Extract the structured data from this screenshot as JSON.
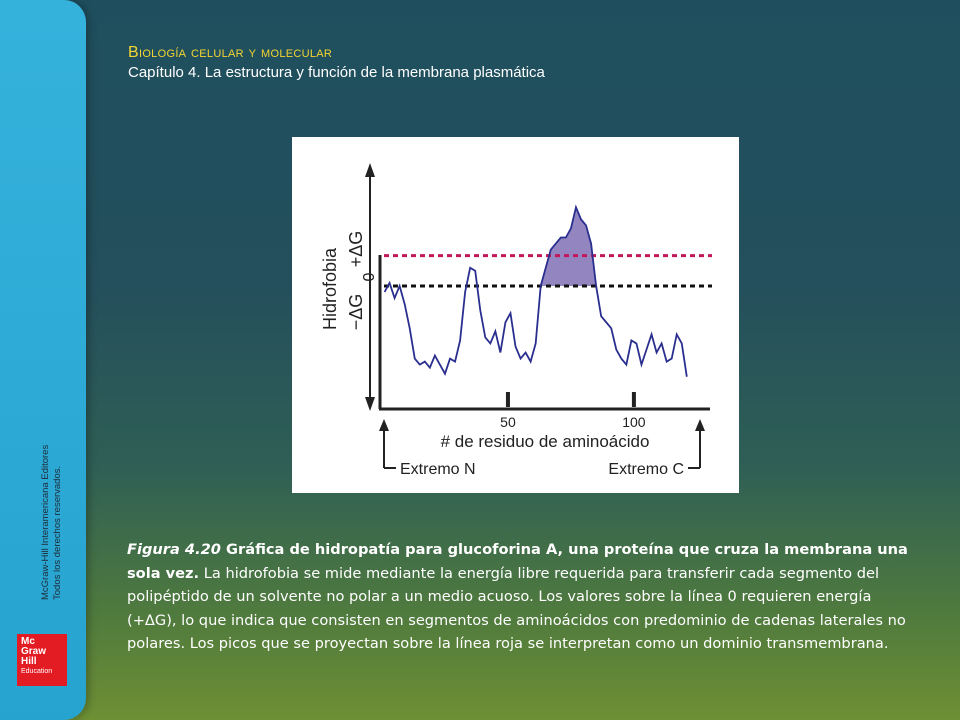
{
  "header": {
    "title": "Biología celular y molecular",
    "subtitle": "Capítulo 4. La estructura y función de la membrana plasmática"
  },
  "sidebar": {
    "copyright_line1": "McGraw-Hill Interamericana Editores",
    "copyright_line2": "Todos los derechos reservados.",
    "logo_lines": [
      "Mc",
      "Graw",
      "Hill",
      "Education"
    ]
  },
  "caption": {
    "figure_label": "Figura 4.20",
    "lead": "Gráfica de hidropatía para glucoforina A, una proteína que cruza la membrana una sola vez.",
    "body": "La hidrofobia se mide mediante la energía libre requerida para transferir cada segmento del polipéptido de un solvente no polar a un medio acuoso. Los valores sobre la línea 0 requieren energía (+ΔG), lo que indica que consisten en segmentos de aminoácidos con predominio de cadenas laterales no polares. Los picos que se proyectan sobre la línea roja se interpretan como un dominio transmembrana."
  },
  "chart_data": {
    "type": "line",
    "ylabel": "Hidrofobia",
    "y_pos_label": "+ΔG",
    "y_neg_label": "−ΔG",
    "y_zero_label": "0",
    "xlabel": "# de residuo de aminoácido",
    "x_ticks": [
      50,
      100
    ],
    "x_start_label": "Extremo N",
    "x_end_label": "Extremo C",
    "xlim": [
      0,
      131
    ],
    "ylim": [
      -4.0,
      3.6
    ],
    "red_threshold": 1.0,
    "zero_line": 0,
    "series": [
      {
        "x": [
          1,
          3,
          5,
          7,
          9,
          11,
          13,
          15,
          17,
          19,
          21,
          23,
          25,
          27,
          29,
          31,
          33,
          35,
          37,
          39,
          41,
          43,
          45,
          47,
          49,
          51,
          53,
          55,
          57,
          59,
          61,
          63,
          65,
          67,
          69,
          71,
          73,
          75,
          77,
          79,
          81,
          83,
          85,
          87,
          89,
          91,
          93,
          95,
          97,
          99,
          101,
          103,
          105,
          107,
          109,
          111,
          113,
          115,
          117,
          119,
          121
        ],
        "values": [
          -0.2,
          0.1,
          -0.4,
          0.0,
          -0.6,
          -1.4,
          -2.4,
          -2.6,
          -2.5,
          -2.7,
          -2.3,
          -2.6,
          -2.9,
          -2.4,
          -2.5,
          -1.8,
          -0.2,
          0.6,
          0.5,
          -0.8,
          -1.7,
          -1.9,
          -1.5,
          -2.2,
          -1.2,
          -0.9,
          -2.0,
          -2.4,
          -2.2,
          -2.5,
          -1.9,
          0.0,
          0.6,
          1.2,
          1.4,
          1.6,
          1.6,
          1.9,
          2.6,
          2.2,
          2.0,
          1.4,
          0.0,
          -1.0,
          -1.2,
          -1.4,
          -2.1,
          -2.4,
          -2.6,
          -1.8,
          -1.9,
          -2.6,
          -2.1,
          -1.6,
          -2.2,
          -1.9,
          -2.5,
          -2.4,
          -1.6,
          -1.9,
          -3.0
        ]
      }
    ],
    "colors": {
      "line": "#2a2f8f",
      "fill": "#9386c0",
      "threshold": "#c2185b",
      "axis": "#222222"
    }
  }
}
